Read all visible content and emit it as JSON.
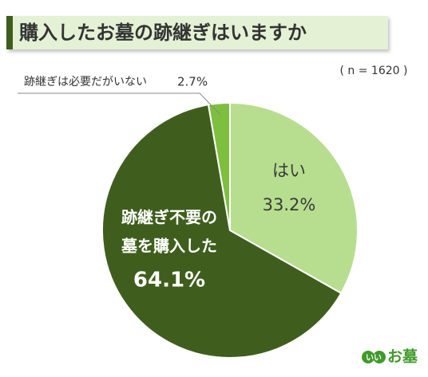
{
  "chart_data": {
    "type": "pie",
    "title": "購入したお墓の跡継ぎはいますか",
    "subtitle": "( n = 1620 )",
    "categories": [
      [
        "はい"
      ],
      [
        "跡継ぎ不要の",
        "墓を購入した"
      ],
      [
        "跡継ぎは必要だがいない"
      ]
    ],
    "values": [
      33.2,
      64.1,
      2.7
    ],
    "value_labels": [
      "33.2%",
      "64.1%",
      "2.7%"
    ],
    "colors": [
      "#b7de8e",
      "#3f5e1d",
      "#7dbf3e"
    ]
  },
  "logo": {
    "mark": "いい",
    "text": "お墓"
  }
}
